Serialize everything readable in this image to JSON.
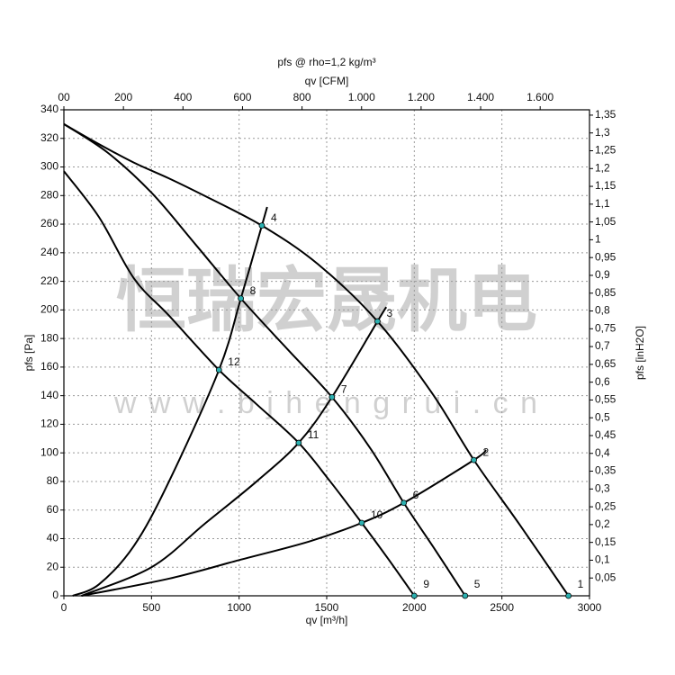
{
  "chart_data": {
    "type": "line",
    "title": "pfs @ rho=1,2 kg/m³",
    "x2_label": "qv [CFM]",
    "x_label": "qv [m³/h]",
    "y_label": "pfs [Pa]",
    "y2_label": "pfs [inH2O]",
    "watermark": [
      "恒瑞宏晟机电",
      "w w w . b j h e n g r u i . c n"
    ],
    "grid": true,
    "xlim": [
      0,
      3000
    ],
    "xticks": [
      0,
      500,
      1000,
      1500,
      2000,
      2500,
      3000
    ],
    "ylim": [
      0,
      340
    ],
    "yticks": [
      0,
      20,
      40,
      60,
      80,
      100,
      120,
      140,
      160,
      180,
      200,
      220,
      240,
      260,
      280,
      300,
      320,
      340
    ],
    "x2lim": [
      0,
      1765.7
    ],
    "x2ticks": [
      {
        "value": 0,
        "label": "00"
      },
      200,
      400,
      600,
      800,
      {
        "value": 1000,
        "label": "1.000"
      },
      {
        "value": 1200,
        "label": "1.200"
      },
      {
        "value": 1400,
        "label": "1.400"
      },
      {
        "value": 1600,
        "label": "1.600"
      }
    ],
    "y2lim": [
      0,
      1.365
    ],
    "y2ticks": [
      {
        "value": 0.05,
        "label": "0,05"
      },
      {
        "value": 0.1,
        "label": "0,1"
      },
      {
        "value": 0.15,
        "label": "0,15"
      },
      {
        "value": 0.2,
        "label": "0,2"
      },
      {
        "value": 0.25,
        "label": "0,25"
      },
      {
        "value": 0.3,
        "label": "0,3"
      },
      {
        "value": 0.35,
        "label": "0,35"
      },
      {
        "value": 0.4,
        "label": "0,4"
      },
      {
        "value": 0.45,
        "label": "0,45"
      },
      {
        "value": 0.5,
        "label": "0,5"
      },
      {
        "value": 0.55,
        "label": "0,55"
      },
      {
        "value": 0.6,
        "label": "0,6"
      },
      {
        "value": 0.65,
        "label": "0,65"
      },
      {
        "value": 0.7,
        "label": "0,7"
      },
      {
        "value": 0.75,
        "label": "0,75"
      },
      {
        "value": 0.8,
        "label": "0,8"
      },
      {
        "value": 0.85,
        "label": "0,85"
      },
      {
        "value": 0.9,
        "label": "0,9"
      },
      {
        "value": 0.95,
        "label": "0,95"
      },
      1,
      {
        "value": 1.05,
        "label": "1,05"
      },
      {
        "value": 1.1,
        "label": "1,1"
      },
      {
        "value": 1.15,
        "label": "1,15"
      },
      {
        "value": 1.2,
        "label": "1,2"
      },
      {
        "value": 1.25,
        "label": "1,25"
      },
      {
        "value": 1.3,
        "label": "1,3"
      },
      {
        "value": 1.35,
        "label": "1,35"
      }
    ],
    "series": [
      {
        "color": "#000000",
        "x": [
          0,
          200,
          400,
          600,
          800,
          1130,
          1450,
          1790,
          2100,
          2340,
          2600,
          2880
        ],
        "values": [
          330,
          316,
          303,
          292,
          280,
          259,
          232,
          192,
          142,
          95,
          50,
          0
        ]
      },
      {
        "color": "#000000",
        "x": [
          0,
          250,
          500,
          750,
          1010,
          1280,
          1530,
          1750,
          1940,
          2120,
          2290
        ],
        "values": [
          330,
          310,
          282,
          246,
          208,
          172,
          139,
          103,
          65,
          32,
          0
        ]
      },
      {
        "color": "#000000",
        "x": [
          0,
          200,
          400,
          600,
          885,
          1100,
          1340,
          1520,
          1700,
          1850,
          2000
        ],
        "values": [
          297,
          265,
          222,
          196,
          158,
          134,
          107,
          80,
          51,
          26,
          0
        ]
      },
      {
        "color": "#000000",
        "x": [
          50,
          200,
          400,
          600,
          885,
          1010,
          1130,
          1160
        ],
        "values": [
          0,
          8,
          35,
          80,
          158,
          208,
          259,
          272
        ]
      },
      {
        "color": "#000000",
        "x": [
          100,
          500,
          800,
          1100,
          1340,
          1530,
          1790,
          1840
        ],
        "values": [
          0,
          20,
          50,
          80,
          107,
          139,
          192,
          202
        ]
      },
      {
        "color": "#000000",
        "x": [
          100,
          600,
          1000,
          1400,
          1700,
          1940,
          2340,
          2410
        ],
        "values": [
          0,
          12,
          25,
          38,
          51,
          65,
          95,
          102
        ]
      }
    ],
    "points": [
      {
        "label": "1",
        "x": 2880,
        "y": 0
      },
      {
        "label": "2",
        "x": 2340,
        "y": 95
      },
      {
        "label": "3",
        "x": 1790,
        "y": 192
      },
      {
        "label": "4",
        "x": 1130,
        "y": 259
      },
      {
        "label": "5",
        "x": 2290,
        "y": 0
      },
      {
        "label": "6",
        "x": 1940,
        "y": 65
      },
      {
        "label": "7",
        "x": 1530,
        "y": 139
      },
      {
        "label": "8",
        "x": 1010,
        "y": 208
      },
      {
        "label": "9",
        "x": 2000,
        "y": 0
      },
      {
        "label": "10",
        "x": 1700,
        "y": 51
      },
      {
        "label": "11",
        "x": 1340,
        "y": 107
      },
      {
        "label": "12",
        "x": 885,
        "y": 158
      }
    ],
    "point_color": "#2bb0b0"
  }
}
